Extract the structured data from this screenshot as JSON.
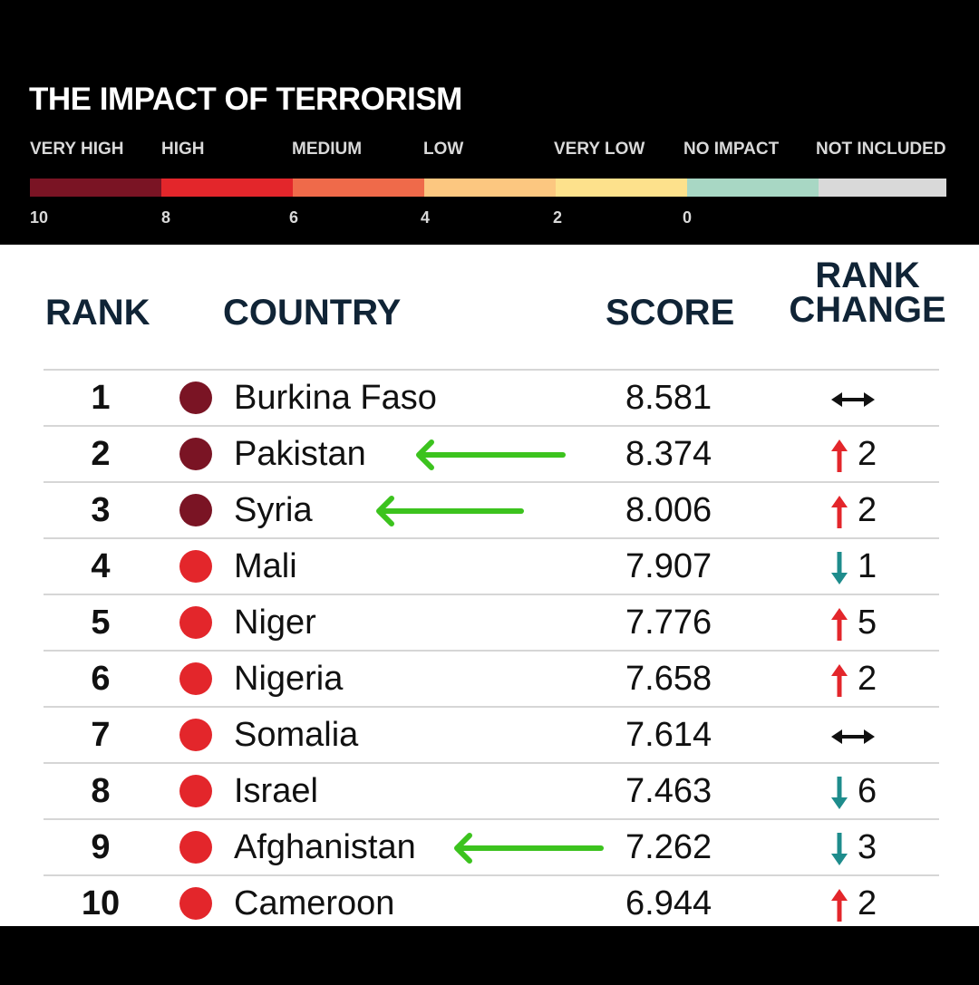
{
  "header": {
    "title": "THE IMPACT OF TERRORISM"
  },
  "legend": {
    "categories": [
      {
        "label": "VERY HIGH",
        "color": "#7a1424"
      },
      {
        "label": "HIGH",
        "color": "#e3262b"
      },
      {
        "label": "MEDIUM",
        "color": "#ef6a4a"
      },
      {
        "label": "LOW",
        "color": "#fcc780"
      },
      {
        "label": "VERY LOW",
        "color": "#fde18c"
      },
      {
        "label": "NO IMPACT",
        "color": "#a8d7c4"
      },
      {
        "label": "NOT INCLUDED",
        "color": "#d9d9d9"
      }
    ],
    "ticks": [
      "10",
      "8",
      "6",
      "4",
      "2",
      "0"
    ]
  },
  "table": {
    "headers": {
      "rank": "RANK",
      "country": "COUNTRY",
      "score": "SCORE",
      "rank_change_1": "RANK",
      "rank_change_2": "CHANGE"
    }
  },
  "colors": {
    "very_high": "#7a1424",
    "high": "#e3262b",
    "up_arrow": "#e3262b",
    "down_arrow": "#1e8c8c",
    "same_arrow": "#111111",
    "highlight_arrow": "#3cc31e"
  },
  "chart_data": {
    "type": "table",
    "title": "THE IMPACT OF TERRORISM",
    "columns": [
      "RANK",
      "COUNTRY",
      "SCORE",
      "RANK CHANGE"
    ],
    "rows": [
      {
        "rank": "1",
        "country": "Burkina Faso",
        "score": "8.581",
        "category": "very_high",
        "change_dir": "same",
        "change": "",
        "highlighted": false
      },
      {
        "rank": "2",
        "country": "Pakistan",
        "score": "8.374",
        "category": "very_high",
        "change_dir": "up",
        "change": "2",
        "highlighted": true
      },
      {
        "rank": "3",
        "country": "Syria",
        "score": "8.006",
        "category": "very_high",
        "change_dir": "up",
        "change": "2",
        "highlighted": true
      },
      {
        "rank": "4",
        "country": "Mali",
        "score": "7.907",
        "category": "high",
        "change_dir": "down",
        "change": "1",
        "highlighted": false
      },
      {
        "rank": "5",
        "country": "Niger",
        "score": "7.776",
        "category": "high",
        "change_dir": "up",
        "change": "5",
        "highlighted": false
      },
      {
        "rank": "6",
        "country": "Nigeria",
        "score": "7.658",
        "category": "high",
        "change_dir": "up",
        "change": "2",
        "highlighted": false
      },
      {
        "rank": "7",
        "country": "Somalia",
        "score": "7.614",
        "category": "high",
        "change_dir": "same",
        "change": "",
        "highlighted": false
      },
      {
        "rank": "8",
        "country": "Israel",
        "score": "7.463",
        "category": "high",
        "change_dir": "down",
        "change": "6",
        "highlighted": false
      },
      {
        "rank": "9",
        "country": "Afghanistan",
        "score": "7.262",
        "category": "high",
        "change_dir": "down",
        "change": "3",
        "highlighted": true
      },
      {
        "rank": "10",
        "country": "Cameroon",
        "score": "6.944",
        "category": "high",
        "change_dir": "up",
        "change": "2",
        "highlighted": false
      }
    ]
  }
}
